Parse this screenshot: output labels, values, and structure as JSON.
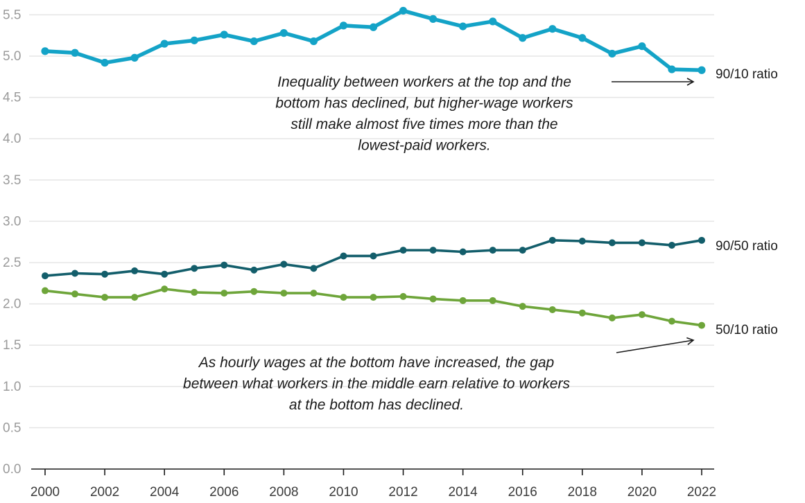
{
  "chart_data": {
    "type": "line",
    "x": [
      2000,
      2001,
      2002,
      2003,
      2004,
      2005,
      2006,
      2007,
      2008,
      2009,
      2010,
      2011,
      2012,
      2013,
      2014,
      2015,
      2016,
      2017,
      2018,
      2019,
      2020,
      2021,
      2022
    ],
    "x_tick_labels": [
      "2000",
      "2002",
      "2004",
      "2006",
      "2008",
      "2010",
      "2012",
      "2014",
      "2016",
      "2018",
      "2020",
      "2022"
    ],
    "y_tick_labels": [
      "0.0",
      "0.5",
      "1.0",
      "1.5",
      "2.0",
      "2.5",
      "3.0",
      "3.5",
      "4.0",
      "4.5",
      "5.0",
      "5.5"
    ],
    "xlim": [
      2000,
      2022
    ],
    "ylim": [
      0,
      5.6
    ],
    "grid": true,
    "series": [
      {
        "name": "90/10 ratio",
        "color": "#14a3c7",
        "values": [
          5.06,
          5.04,
          4.92,
          4.98,
          5.15,
          5.19,
          5.26,
          5.18,
          5.28,
          5.18,
          5.37,
          5.35,
          5.55,
          5.45,
          5.36,
          5.42,
          5.22,
          5.33,
          5.22,
          5.03,
          5.12,
          4.84,
          4.83
        ]
      },
      {
        "name": "90/50 ratio",
        "color": "#135e6b",
        "values": [
          2.34,
          2.37,
          2.36,
          2.4,
          2.36,
          2.43,
          2.47,
          2.41,
          2.48,
          2.43,
          2.58,
          2.58,
          2.65,
          2.65,
          2.63,
          2.65,
          2.65,
          2.77,
          2.76,
          2.74,
          2.74,
          2.71,
          2.77
        ]
      },
      {
        "name": "50/10 ratio",
        "color": "#6ea53a",
        "values": [
          2.16,
          2.12,
          2.08,
          2.08,
          2.18,
          2.14,
          2.13,
          2.15,
          2.13,
          2.13,
          2.08,
          2.08,
          2.09,
          2.06,
          2.04,
          2.04,
          1.97,
          1.93,
          1.89,
          1.83,
          1.87,
          1.79,
          1.74
        ]
      }
    ],
    "annotations": [
      {
        "lines": [
          "Inequality between workers at the top and the",
          "bottom has declined, but higher-wage workers",
          "still make almost five times more than the",
          "lowest-paid workers."
        ]
      },
      {
        "lines": [
          "As hourly wages at the bottom have increased, the gap",
          "between what workers in the middle earn relative to workers",
          "at the bottom has declined."
        ]
      }
    ]
  }
}
